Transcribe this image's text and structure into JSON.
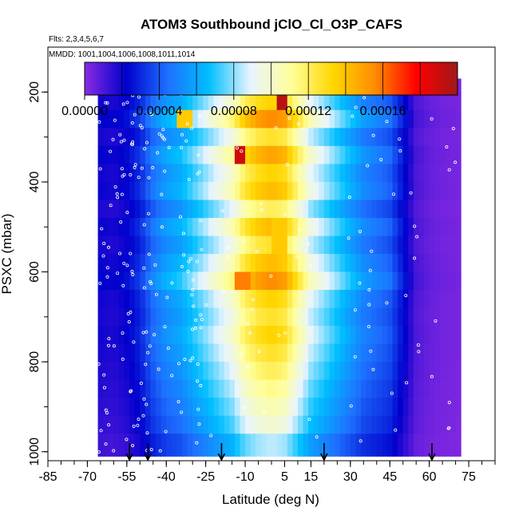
{
  "chart_data": {
    "type": "heatmap",
    "title": "ATOM3 Southbound jClO_Cl_O3P_CAFS",
    "subtitle_flights": "Flts: 2,3,4,5,6,7",
    "subtitle_dates": "MMDD: 1001,1004,1006,1008,1011,1014",
    "xlabel": "Latitude (deg N)",
    "ylabel": "PSXC (mbar)",
    "x_ticks": [
      "-85",
      "-70",
      "-55",
      "-40",
      "-25",
      "-10",
      "5",
      "15",
      "30",
      "45",
      "60",
      "75"
    ],
    "y_ticks": [
      "200",
      "400",
      "600",
      "800",
      "1000"
    ],
    "xlim": [
      -85,
      85
    ],
    "ylim": [
      1020,
      100
    ],
    "colorbar": {
      "ticks": [
        "0.00000",
        "0.00004",
        "0.00008",
        "0.00012",
        "0.00016"
      ],
      "range": [
        0,
        0.00019
      ],
      "colors": [
        "#8a2be2",
        "#0000cd",
        "#1e6fff",
        "#00bfff",
        "#e8f4ff",
        "#ffff99",
        "#ffd700",
        "#ff8c00",
        "#ff0000",
        "#a01818"
      ]
    },
    "latitude_markers": [
      -54,
      -47,
      -19,
      20,
      61
    ],
    "data_extent": {
      "lat_min": -66,
      "lat_max": 72,
      "p_top": 170,
      "p_bottom": 1010
    },
    "latitude_profile": [
      {
        "lat": -66,
        "value": 2e-05
      },
      {
        "lat": -60,
        "value": 1.8e-05
      },
      {
        "lat": -55,
        "value": 2.2e-05
      },
      {
        "lat": -50,
        "value": 3e-05
      },
      {
        "lat": -45,
        "value": 4.5e-05
      },
      {
        "lat": -40,
        "value": 5.5e-05
      },
      {
        "lat": -35,
        "value": 6e-05
      },
      {
        "lat": -30,
        "value": 7e-05
      },
      {
        "lat": -25,
        "value": 8e-05
      },
      {
        "lat": -20,
        "value": 9e-05
      },
      {
        "lat": -15,
        "value": 0.0001
      },
      {
        "lat": -10,
        "value": 0.00012
      },
      {
        "lat": -5,
        "value": 0.00013
      },
      {
        "lat": 0,
        "value": 0.000135
      },
      {
        "lat": 5,
        "value": 0.00013
      },
      {
        "lat": 10,
        "value": 0.00011
      },
      {
        "lat": 15,
        "value": 9e-05
      },
      {
        "lat": 20,
        "value": 8e-05
      },
      {
        "lat": 25,
        "value": 7e-05
      },
      {
        "lat": 30,
        "value": 6e-05
      },
      {
        "lat": 35,
        "value": 5e-05
      },
      {
        "lat": 40,
        "value": 4.5e-05
      },
      {
        "lat": 45,
        "value": 4e-05
      },
      {
        "lat": 50,
        "value": 2.5e-05
      },
      {
        "lat": 55,
        "value": 1e-05
      },
      {
        "lat": 60,
        "value": 6e-06
      },
      {
        "lat": 65,
        "value": 4e-06
      },
      {
        "lat": 72,
        "value": 3e-06
      }
    ],
    "layers": [
      {
        "p_top": 170,
        "p_bottom": 200,
        "factor": 0.75
      },
      {
        "p_top": 200,
        "p_bottom": 240,
        "factor": 0.95
      },
      {
        "p_top": 240,
        "p_bottom": 280,
        "factor": 1.1
      },
      {
        "p_top": 280,
        "p_bottom": 320,
        "factor": 0.9
      },
      {
        "p_top": 320,
        "p_bottom": 360,
        "factor": 1.05
      },
      {
        "p_top": 360,
        "p_bottom": 400,
        "factor": 0.95
      },
      {
        "p_top": 400,
        "p_bottom": 440,
        "factor": 1.0
      },
      {
        "p_top": 440,
        "p_bottom": 480,
        "factor": 0.85
      },
      {
        "p_top": 480,
        "p_bottom": 520,
        "factor": 1.0
      },
      {
        "p_top": 520,
        "p_bottom": 560,
        "factor": 0.9
      },
      {
        "p_top": 560,
        "p_bottom": 600,
        "factor": 1.0
      },
      {
        "p_top": 600,
        "p_bottom": 640,
        "factor": 1.1
      },
      {
        "p_top": 640,
        "p_bottom": 680,
        "factor": 0.95
      },
      {
        "p_top": 680,
        "p_bottom": 720,
        "factor": 0.9
      },
      {
        "p_top": 720,
        "p_bottom": 760,
        "factor": 0.95
      },
      {
        "p_top": 760,
        "p_bottom": 800,
        "factor": 0.9
      },
      {
        "p_top": 800,
        "p_bottom": 840,
        "factor": 0.85
      },
      {
        "p_top": 840,
        "p_bottom": 880,
        "factor": 0.8
      },
      {
        "p_top": 880,
        "p_bottom": 920,
        "factor": 0.75
      },
      {
        "p_top": 920,
        "p_bottom": 960,
        "factor": 0.7
      },
      {
        "p_top": 960,
        "p_bottom": 1010,
        "factor": 0.6
      }
    ],
    "hotspots": [
      {
        "lat": 3,
        "p": 225,
        "value": 0.000185
      },
      {
        "lat": -13,
        "p": 325,
        "value": 0.00018
      },
      {
        "lat": -34,
        "p": 270,
        "value": 0.00013
      },
      {
        "lat": -12,
        "p": 620,
        "value": 0.00015
      },
      {
        "lat": 2,
        "p": 520,
        "value": 0.00013
      }
    ]
  }
}
